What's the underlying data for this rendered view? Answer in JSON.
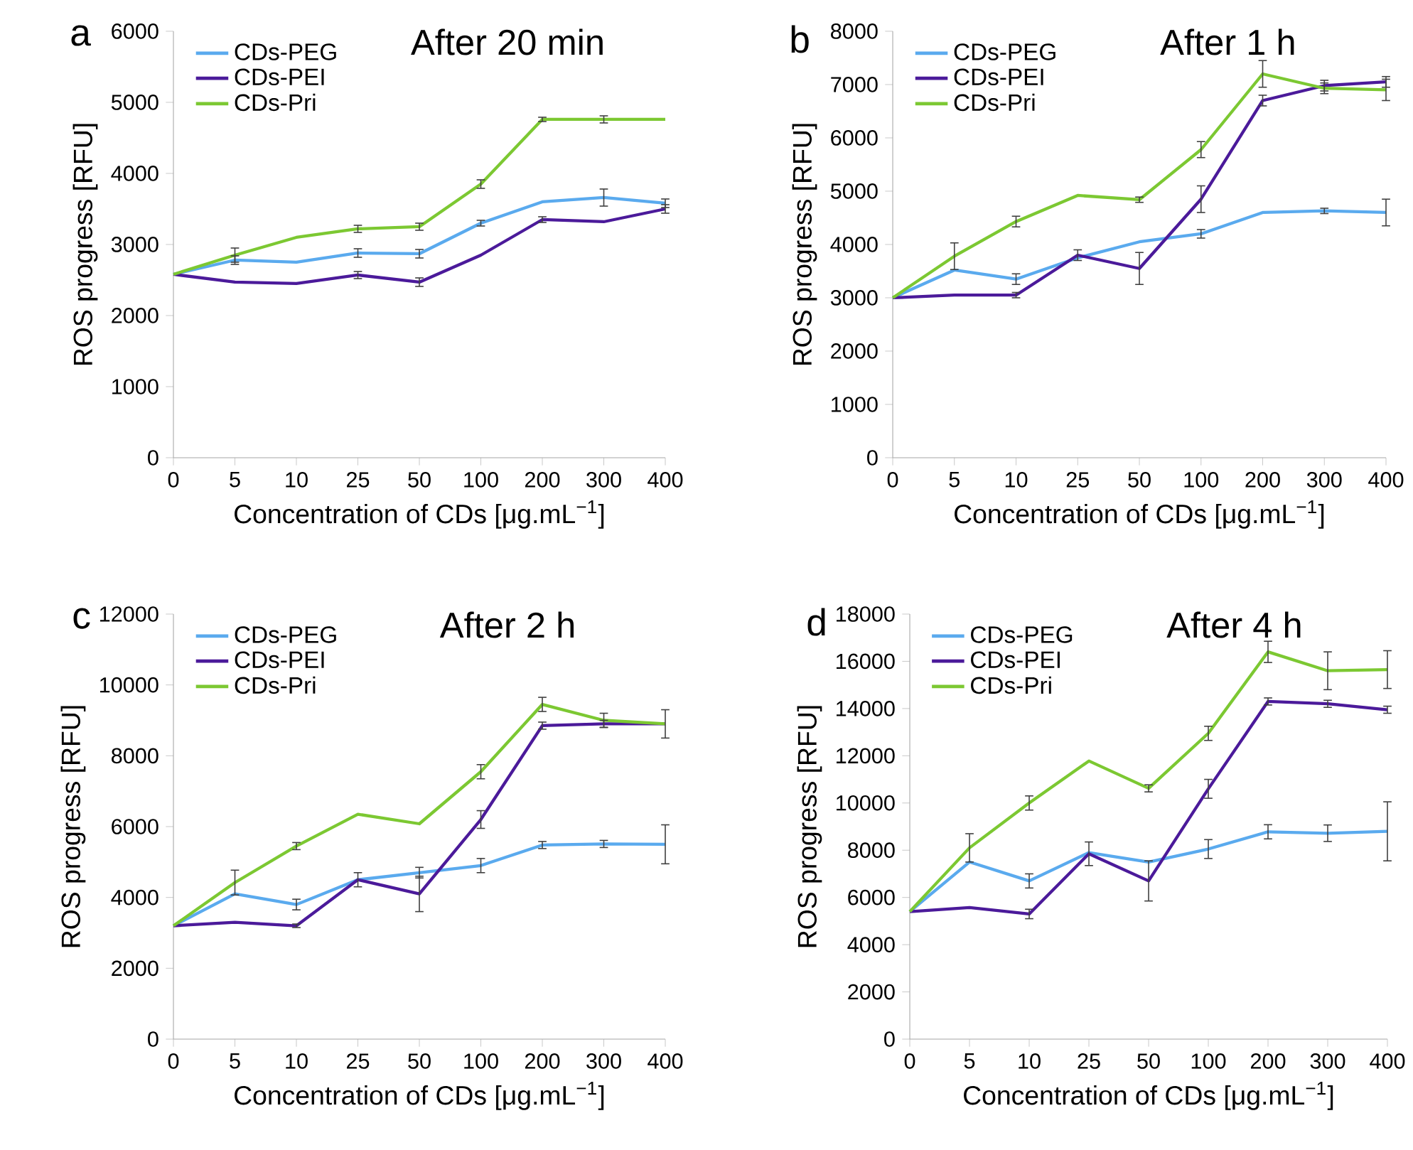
{
  "chart_data": [
    {
      "type": "line",
      "title": "After 20 min",
      "annotations": [
        "a"
      ],
      "xlabel": "Concentration of CDs [μg.mL$^{−1}$]",
      "ylabel": "ROS progress [RFU]",
      "categories": [
        "0",
        "5",
        "10",
        "25",
        "50",
        "100",
        "200",
        "300",
        "400"
      ],
      "ylim": [
        0,
        6000
      ],
      "yticks": [
        0,
        1000,
        2000,
        3000,
        4000,
        5000,
        6000
      ],
      "legend": "top left",
      "series": [
        {
          "name": "CDs-PEG",
          "color": "#5aaaee",
          "values": [
            2580,
            2780,
            2750,
            2880,
            2870,
            3300,
            3600,
            3660,
            3580
          ],
          "errors": [
            null,
            60,
            null,
            60,
            60,
            40,
            null,
            120,
            60
          ]
        },
        {
          "name": "CDs-PEI",
          "color": "#4b1a9a",
          "values": [
            2580,
            2470,
            2450,
            2570,
            2470,
            2850,
            3350,
            3320,
            3500
          ],
          "errors": [
            null,
            null,
            null,
            50,
            60,
            null,
            40,
            null,
            60
          ]
        },
        {
          "name": "CDs-Pri",
          "color": "#7cc832",
          "values": [
            2580,
            2850,
            3100,
            3220,
            3250,
            3850,
            4760,
            4760,
            4760
          ],
          "errors": [
            null,
            100,
            null,
            50,
            50,
            60,
            30,
            50,
            null
          ]
        }
      ]
    },
    {
      "type": "line",
      "title": "After 1 h",
      "annotations": [
        "b"
      ],
      "xlabel": "Concentration of CDs [μg.mL$^{−1}$]",
      "ylabel": "ROS progress [RFU]",
      "categories": [
        "0",
        "5",
        "10",
        "25",
        "50",
        "100",
        "200",
        "300",
        "400"
      ],
      "ylim": [
        0,
        8000
      ],
      "yticks": [
        0,
        1000,
        2000,
        3000,
        4000,
        5000,
        6000,
        7000,
        8000
      ],
      "legend": "top left",
      "series": [
        {
          "name": "CDs-PEG",
          "color": "#5aaaee",
          "values": [
            3000,
            3520,
            3350,
            3750,
            4050,
            4200,
            4600,
            4630,
            4600
          ],
          "errors": [
            null,
            null,
            100,
            null,
            null,
            80,
            null,
            50,
            250
          ]
        },
        {
          "name": "CDs-PEI",
          "color": "#4b1a9a",
          "values": [
            3000,
            3050,
            3050,
            3800,
            3550,
            4850,
            6700,
            6980,
            7050
          ],
          "errors": [
            null,
            null,
            50,
            100,
            300,
            250,
            100,
            100,
            100
          ]
        },
        {
          "name": "CDs-Pri",
          "color": "#7cc832",
          "values": [
            3000,
            3780,
            4430,
            4920,
            4840,
            5780,
            7200,
            6930,
            6900
          ],
          "errors": [
            null,
            250,
            100,
            null,
            50,
            150,
            250,
            100,
            200
          ]
        }
      ]
    },
    {
      "type": "line",
      "title": "After 2 h",
      "annotations": [
        "c"
      ],
      "xlabel": "Concentration of CDs [μg.mL$^{−1}$]",
      "ylabel": "ROS progress [RFU]",
      "categories": [
        "0",
        "5",
        "10",
        "25",
        "50",
        "100",
        "200",
        "300",
        "400"
      ],
      "ylim": [
        0,
        12000
      ],
      "yticks": [
        0,
        2000,
        4000,
        6000,
        8000,
        10000,
        12000
      ],
      "legend": "top left",
      "series": [
        {
          "name": "CDs-PEG",
          "color": "#5aaaee",
          "values": [
            3200,
            4100,
            3800,
            4500,
            4700,
            4900,
            5480,
            5510,
            5500
          ],
          "errors": [
            null,
            null,
            150,
            null,
            150,
            200,
            100,
            100,
            550
          ]
        },
        {
          "name": "CDs-PEI",
          "color": "#4b1a9a",
          "values": [
            3200,
            3300,
            3200,
            4500,
            4100,
            6200,
            8850,
            8900,
            8900
          ],
          "errors": [
            null,
            null,
            50,
            200,
            500,
            250,
            100,
            100,
            400
          ]
        },
        {
          "name": "CDs-Pri",
          "color": "#7cc832",
          "values": [
            3200,
            4420,
            5450,
            6350,
            6080,
            7550,
            9450,
            9000,
            8900
          ],
          "errors": [
            null,
            350,
            100,
            null,
            null,
            200,
            200,
            200,
            null
          ]
        }
      ]
    },
    {
      "type": "line",
      "title": "After 4 h",
      "annotations": [
        "d"
      ],
      "xlabel": "Concentration of CDs [μg.mL$^{−1}$]",
      "ylabel": "ROS progress [RFU]",
      "categories": [
        "0",
        "5",
        "10",
        "25",
        "50",
        "100",
        "200",
        "300",
        "400"
      ],
      "ylim": [
        0,
        18000
      ],
      "yticks": [
        0,
        2000,
        4000,
        6000,
        8000,
        10000,
        12000,
        14000,
        16000,
        18000
      ],
      "legend": "top left",
      "series": [
        {
          "name": "CDs-PEG",
          "color": "#5aaaee",
          "values": [
            5400,
            7500,
            6700,
            7900,
            7500,
            8050,
            8780,
            8720,
            8800
          ],
          "errors": [
            null,
            null,
            300,
            null,
            null,
            400,
            300,
            350,
            1250
          ]
        },
        {
          "name": "CDs-PEI",
          "color": "#4b1a9a",
          "values": [
            5400,
            5570,
            5300,
            7850,
            6700,
            10600,
            14300,
            14200,
            13950
          ],
          "errors": [
            null,
            null,
            200,
            500,
            850,
            400,
            150,
            150,
            150
          ]
        },
        {
          "name": "CDs-Pri",
          "color": "#7cc832",
          "values": [
            5400,
            8100,
            10000,
            11780,
            10620,
            12950,
            16400,
            15600,
            15650
          ],
          "errors": [
            null,
            600,
            300,
            null,
            150,
            300,
            450,
            800,
            800
          ]
        }
      ]
    }
  ]
}
